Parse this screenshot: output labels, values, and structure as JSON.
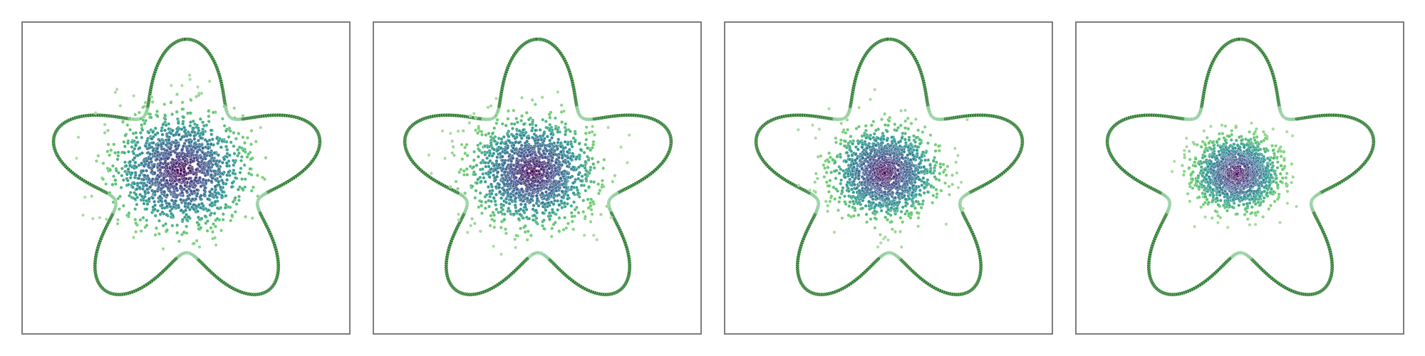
{
  "figure": {
    "panel_count": 4,
    "colors": {
      "boundary_dark": "#2e7d32",
      "boundary_light": "#7cc48a",
      "point_palette": [
        "#440154",
        "#3b528b",
        "#21908d",
        "#5ec962",
        "#a8d8a0"
      ],
      "frame": "#7d7d7d",
      "background": "#ffffff"
    }
  },
  "panels": [
    {
      "spread": 1.0
    },
    {
      "spread": 0.92
    },
    {
      "spread": 0.78
    },
    {
      "spread": 0.62
    }
  ]
}
